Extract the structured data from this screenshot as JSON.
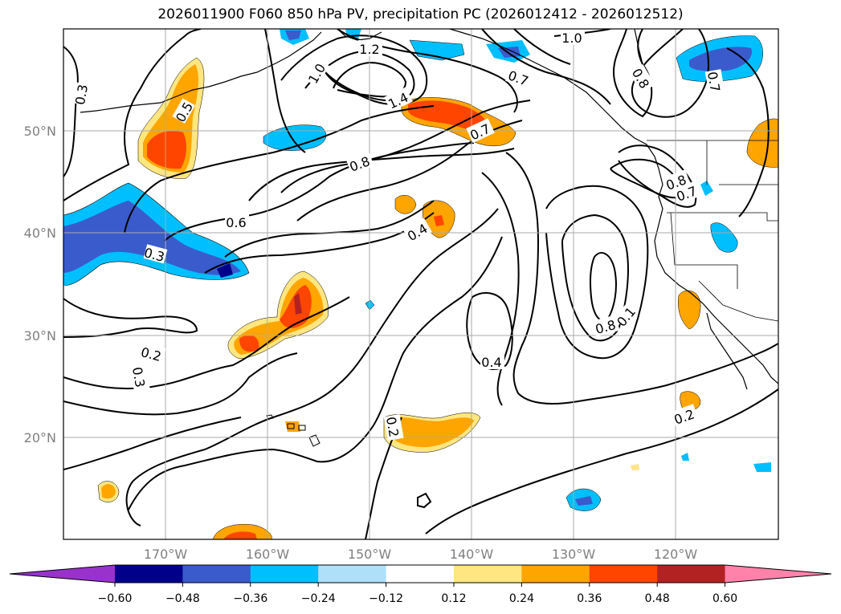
{
  "title": "2026011900 F060 850 hPa PV, precipitation PC (2026012412 - 2026012512)",
  "lat_labels": [
    "50°N",
    "40°N",
    "30°N",
    "20°N"
  ],
  "lon_labels": [
    "170°W",
    "160°W",
    "150°W",
    "140°W",
    "130°W",
    "120°W"
  ],
  "contour_labels": [
    "0.3",
    "0.5",
    "0.3",
    "0.6",
    "0.8",
    "0.2",
    "0.3",
    "1.0",
    "1.2",
    "1.4",
    "0.7",
    "1.0",
    "0.7",
    "0.8",
    "0.4",
    "0.2",
    "0.4",
    "0.8",
    "0.1",
    "0.8",
    "0.7",
    "0.2",
    "0.7"
  ],
  "colorbar": {
    "ticks": [
      "−0.60",
      "−0.48",
      "−0.36",
      "−0.24",
      "−0.12",
      "0.12",
      "0.24",
      "0.36",
      "0.48",
      "0.60"
    ],
    "colors": [
      "#9932cc",
      "#00008b",
      "#3a5bcc",
      "#00bfff",
      "#aee0fa",
      "#ffffff",
      "#ffe680",
      "#ffa500",
      "#ff4500",
      "#b22222",
      "#ff82ab"
    ]
  }
}
